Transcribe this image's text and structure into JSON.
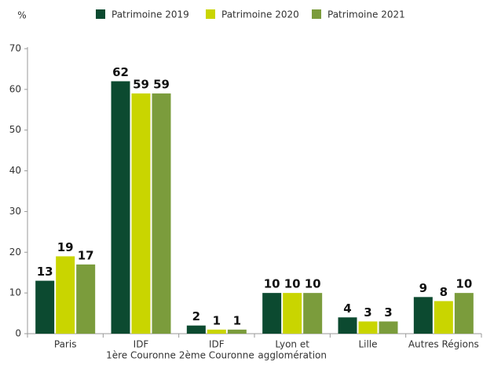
{
  "chart_data": {
    "type": "bar",
    "y_label": "%",
    "categories": [
      [
        "Paris"
      ],
      [
        "IDF",
        "1ère Couronne"
      ],
      [
        "IDF",
        "2ème Couronne"
      ],
      [
        "Lyon et",
        "agglomération"
      ],
      [
        "Lille"
      ],
      [
        "Autres Régions"
      ]
    ],
    "series": [
      {
        "name": "Patrimoine 2019",
        "color": "#0c4a30",
        "values": [
          13,
          62,
          2,
          10,
          4,
          9
        ]
      },
      {
        "name": "Patrimoine 2020",
        "color": "#c9d500",
        "values": [
          19,
          59,
          1,
          10,
          3,
          8
        ]
      },
      {
        "name": "Patrimoine 2021",
        "color": "#7b9c3c",
        "values": [
          17,
          59,
          1,
          10,
          3,
          10
        ]
      }
    ],
    "ylim": [
      0,
      70
    ],
    "yticks": [
      0,
      10,
      20,
      30,
      40,
      50,
      60,
      70
    ],
    "legend": "top"
  }
}
